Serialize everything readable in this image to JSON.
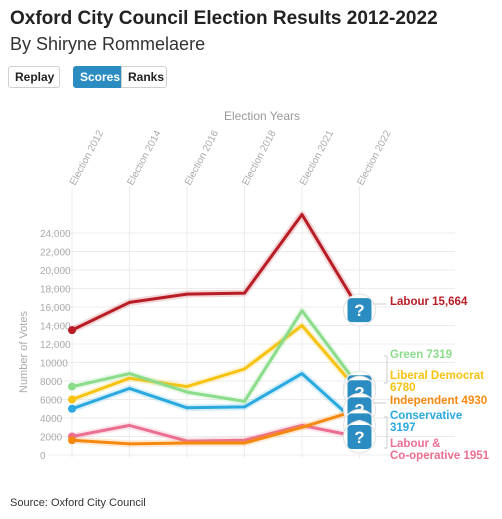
{
  "header": {
    "title": "Oxford City Council Election Results 2012-2022",
    "subtitle": "By Shiryne Rommelaere"
  },
  "controls": {
    "replay_label": "Replay",
    "scores_label": "Scores",
    "ranks_label": "Ranks",
    "active": "Scores"
  },
  "footer": {
    "source": "Source: Oxford City Council"
  },
  "chart_data": {
    "type": "line",
    "title": "Election Years",
    "ylabel": "Number of Votes",
    "categories": [
      "Election 2012",
      "Election 2014",
      "Election 2016",
      "Election 2018",
      "Election 2021",
      "Election 2022"
    ],
    "ylim": [
      0,
      24000
    ],
    "yticks": [
      0,
      2000,
      4000,
      6000,
      8000,
      10000,
      12000,
      14000,
      16000,
      18000,
      20000,
      22000,
      24000
    ],
    "ytick_labels": [
      "0",
      "2000",
      "4000",
      "6000",
      "8000",
      "10000",
      "12,000",
      "14,000",
      "16,000",
      "18,000",
      "20,000",
      "22,000",
      "24,000"
    ],
    "grid": true,
    "series": [
      {
        "name": "Labour",
        "color": "#b81c25",
        "values": [
          13500,
          16500,
          17400,
          17500,
          26000,
          15664
        ],
        "label": "Labour 15,664"
      },
      {
        "name": "Green",
        "color": "#8bdc8b",
        "values": [
          7400,
          8800,
          6800,
          5800,
          15600,
          7319
        ],
        "label": "Green 7319"
      },
      {
        "name": "Liberal Democrat",
        "color": "#f7c310",
        "values": [
          6000,
          8300,
          7400,
          9300,
          14000,
          6780
        ],
        "label": "Liberal Democrat 6780"
      },
      {
        "name": "Independent",
        "color": "#f5890f",
        "values": [
          1600,
          1200,
          1300,
          1300,
          3000,
          4930
        ],
        "label": "Independent 4930"
      },
      {
        "name": "Conservative",
        "color": "#29a9df",
        "values": [
          5000,
          7200,
          5100,
          5200,
          8800,
          3197
        ],
        "label": "Conservative 3197"
      },
      {
        "name": "Labour & Co-operative",
        "color": "#ec6f92",
        "values": [
          2000,
          3200,
          1500,
          1600,
          3200,
          1951
        ],
        "label": "Labour & Co-operative 1951"
      }
    ],
    "end_labels": [
      {
        "lines": [
          "Labour 15,664"
        ],
        "color": "#b81c25"
      },
      {
        "lines": [
          "Green 7319"
        ],
        "color": "#8bdc8b"
      },
      {
        "lines": [
          "Liberal Democrat",
          "6780"
        ],
        "color": "#f7c310"
      },
      {
        "lines": [
          "Independent 4930"
        ],
        "color": "#f5890f"
      },
      {
        "lines": [
          "Conservative",
          "3197"
        ],
        "color": "#29a9df"
      },
      {
        "lines": [
          "Labour &",
          "Co-operative 1951"
        ],
        "color": "#ec6f92"
      }
    ],
    "marker_glyph": "?"
  }
}
